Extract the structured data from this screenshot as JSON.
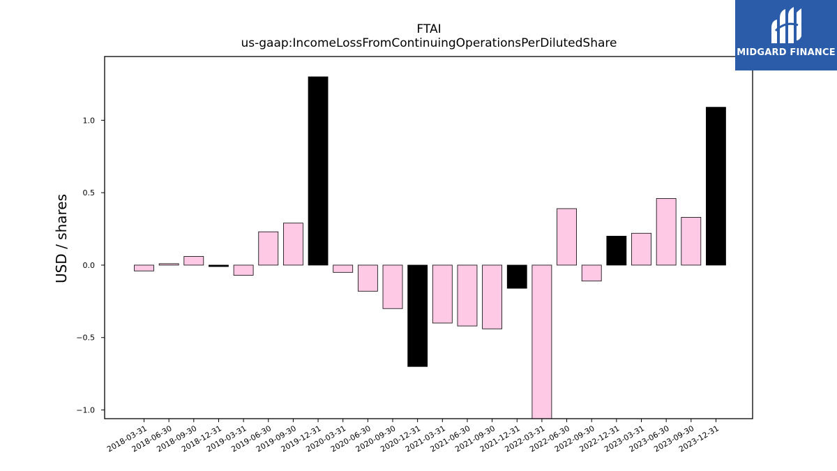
{
  "chart_data": {
    "type": "bar",
    "title": "FTAI",
    "subtitle": "us-gaap:IncomeLossFromContinuingOperationsPerDilutedShare",
    "xlabel": "",
    "ylabel": "USD / shares",
    "ylim": [
      -1.06,
      1.44
    ],
    "yticks": [
      -1.0,
      -0.5,
      0.0,
      0.5,
      1.0
    ],
    "ytick_labels": [
      "−1.0",
      "−0.5",
      "0.0",
      "0.5",
      "1.0"
    ],
    "grid": false,
    "categories": [
      "2018-03-31",
      "2018-06-30",
      "2018-09-30",
      "2018-12-31",
      "2019-03-31",
      "2019-06-30",
      "2019-09-30",
      "2019-12-31",
      "2020-03-31",
      "2020-06-30",
      "2020-09-30",
      "2020-12-31",
      "2021-03-31",
      "2021-06-30",
      "2021-09-30",
      "2021-12-31",
      "2022-03-31",
      "2022-06-30",
      "2022-09-30",
      "2022-12-31",
      "2023-03-31",
      "2023-06-30",
      "2023-09-30",
      "2023-12-31"
    ],
    "values": [
      -0.04,
      0.01,
      0.06,
      -0.01,
      -0.07,
      0.23,
      0.29,
      1.3,
      -0.05,
      -0.18,
      -0.3,
      -0.7,
      -0.4,
      -0.42,
      -0.44,
      -0.16,
      -1.06,
      0.39,
      -0.11,
      0.2,
      0.22,
      0.46,
      0.33,
      1.09
    ],
    "quarter_end_flags": [
      false,
      false,
      false,
      true,
      false,
      false,
      false,
      true,
      false,
      false,
      false,
      true,
      false,
      false,
      false,
      true,
      false,
      false,
      false,
      true,
      false,
      false,
      false,
      true
    ],
    "colors": {
      "quarter": "#fdc9e4",
      "year_end": "#000000",
      "edge": "#000000"
    }
  },
  "logo": {
    "text": "MIDGARD FINANCE",
    "background": "#2a5caa"
  }
}
